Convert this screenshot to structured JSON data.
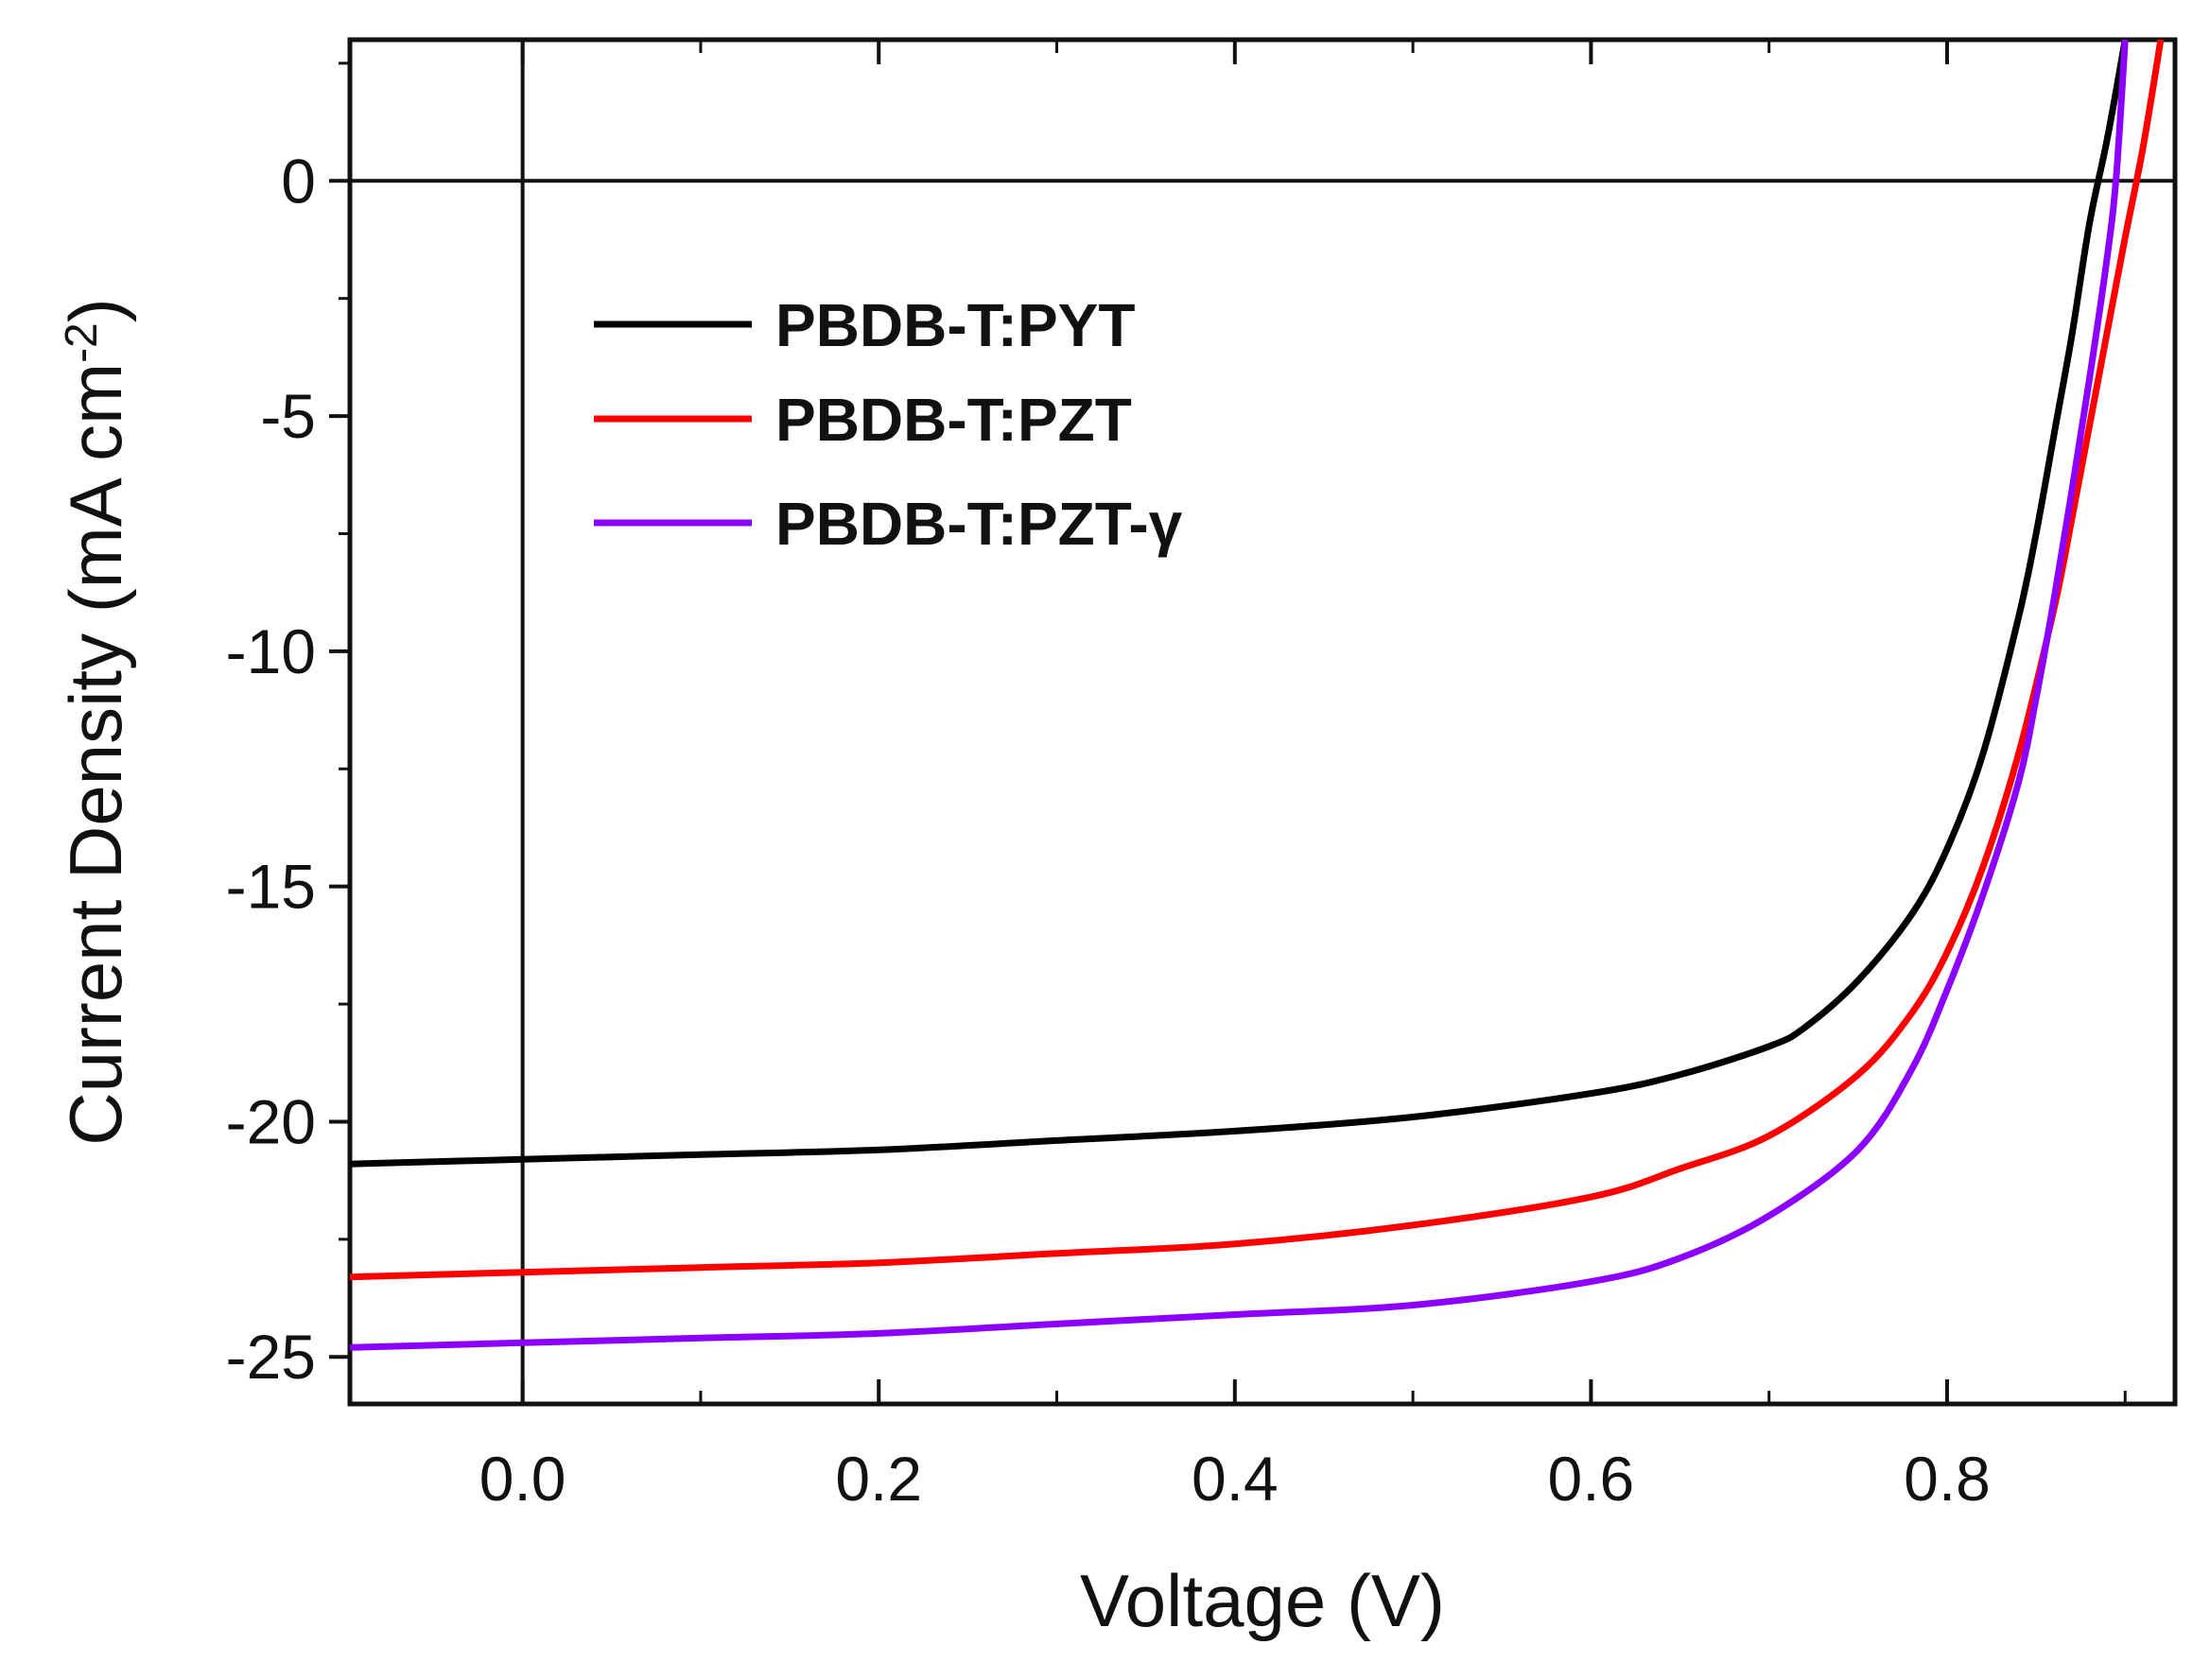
{
  "chart_data": {
    "type": "line",
    "title": "",
    "xlabel": "Voltage (V)",
    "ylabel": "Current Density (mA cm",
    "ylabel_superscript": "-2",
    "ylabel_close": ")",
    "xlim": [
      -0.097,
      0.928
    ],
    "ylim": [
      -26.0,
      3.0
    ],
    "x_ticks": [
      0.0,
      0.2,
      0.4,
      0.6,
      0.8
    ],
    "x_tick_labels": [
      "0.0",
      "0.2",
      "0.4",
      "0.6",
      "0.8"
    ],
    "y_ticks": [
      0,
      -5,
      -10,
      -15,
      -20,
      -25
    ],
    "y_tick_labels": [
      "0",
      "-5",
      "-10",
      "-15",
      "-20",
      "-25"
    ],
    "x_minor_step": 0.1,
    "y_minor_step": 2.5,
    "reference_lines": {
      "x": 0,
      "y": 0
    },
    "grid": false,
    "legend_position": "upper-left",
    "series": [
      {
        "name": "PBDB-T:PYT",
        "color": "#000000",
        "x": [
          -0.097,
          0.0,
          0.1,
          0.2,
          0.3,
          0.4,
          0.5,
          0.6,
          0.65,
          0.7,
          0.72,
          0.75,
          0.78,
          0.8,
          0.82,
          0.84,
          0.85,
          0.86,
          0.87,
          0.88,
          0.89,
          0.9
        ],
        "y": [
          -20.9,
          -20.8,
          -20.7,
          -20.6,
          -20.4,
          -20.2,
          -19.9,
          -19.4,
          -19.0,
          -18.4,
          -18.0,
          -17.0,
          -15.6,
          -14.2,
          -12.2,
          -9.3,
          -7.5,
          -5.4,
          -3.3,
          -0.9,
          0.9,
          3.0
        ]
      },
      {
        "name": "PBDB-T:PZT",
        "color": "#ff0000",
        "x": [
          -0.097,
          0.0,
          0.1,
          0.2,
          0.3,
          0.4,
          0.5,
          0.6,
          0.65,
          0.7,
          0.75,
          0.78,
          0.8,
          0.82,
          0.84,
          0.86,
          0.87,
          0.88,
          0.89,
          0.9,
          0.91,
          0.92
        ],
        "y": [
          -23.3,
          -23.2,
          -23.1,
          -23.0,
          -22.8,
          -22.6,
          -22.2,
          -21.6,
          -21.0,
          -20.3,
          -19.0,
          -17.7,
          -16.4,
          -14.6,
          -12.2,
          -9.1,
          -7.2,
          -5.2,
          -3.2,
          -1.2,
          0.7,
          3.0
        ]
      },
      {
        "name": "PBDB-T:PZT-γ",
        "color": "#8b00ff",
        "x": [
          -0.097,
          0.0,
          0.1,
          0.2,
          0.3,
          0.4,
          0.5,
          0.6,
          0.65,
          0.7,
          0.75,
          0.78,
          0.8,
          0.82,
          0.84,
          0.85,
          0.86,
          0.87,
          0.88,
          0.89,
          0.895,
          0.9
        ],
        "y": [
          -24.8,
          -24.7,
          -24.6,
          -24.5,
          -24.3,
          -24.1,
          -23.9,
          -23.4,
          -22.9,
          -22.0,
          -20.6,
          -18.9,
          -17.2,
          -15.2,
          -12.8,
          -11.0,
          -8.9,
          -6.6,
          -4.2,
          -1.6,
          0.1,
          3.0
        ]
      }
    ]
  }
}
